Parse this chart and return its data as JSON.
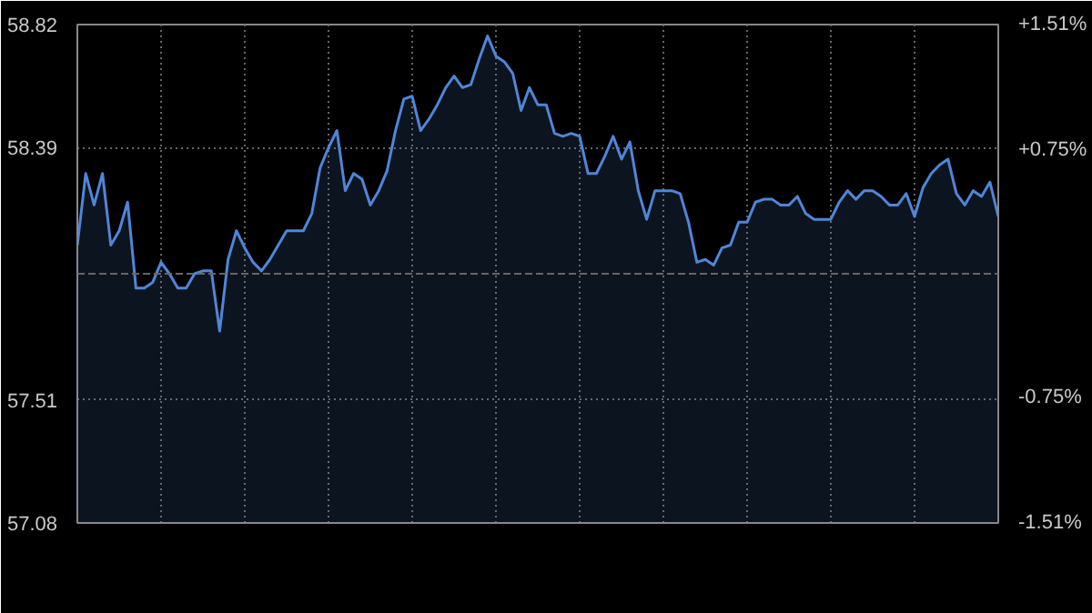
{
  "chart_data": {
    "type": "area",
    "categories": [
      null,
      null,
      null,
      null,
      null,
      null,
      null,
      null,
      null,
      null,
      null,
      null,
      null,
      null,
      null,
      null,
      null,
      null,
      null,
      null,
      null,
      null,
      null,
      null,
      null,
      null,
      null,
      null,
      null,
      null,
      null,
      null,
      null,
      null,
      null,
      null,
      null,
      null,
      null,
      null,
      null,
      null,
      null,
      null,
      null,
      null,
      null,
      null,
      null,
      null,
      null,
      null,
      null,
      null,
      null,
      null,
      null,
      null,
      null,
      null,
      null,
      null,
      null,
      null,
      null,
      null,
      null,
      null,
      null,
      null,
      null,
      null,
      null,
      null,
      null,
      null,
      null,
      null,
      null,
      null,
      null,
      null,
      null,
      null,
      null,
      null,
      null,
      null,
      null,
      null,
      null,
      null,
      null,
      null,
      null,
      null,
      null,
      null,
      null,
      null,
      null,
      null,
      null,
      null,
      null,
      null,
      null,
      null,
      null,
      null,
      null
    ],
    "ylim": [
      57.08,
      58.82
    ],
    "yticks": [
      57.08,
      57.51,
      58.39,
      58.82
    ],
    "y2lim": [
      -1.51,
      1.51
    ],
    "y2ticks": [
      {
        "value": -1.51,
        "label": "-1.51%"
      },
      {
        "value": -0.75,
        "label": "-0.75%"
      },
      {
        "value": 0.75,
        "label": "+0.75%"
      },
      {
        "value": 1.51,
        "label": "+1.51%"
      }
    ],
    "grid": true,
    "ref_lines": [
      {
        "axis": "y",
        "value": 57.95,
        "label": null,
        "color": "#666666",
        "line_style": "dashed"
      }
    ],
    "series": [
      {
        "color": "#4f86d8",
        "values": [
          58.05,
          58.3,
          58.19,
          58.3,
          58.05,
          58.1,
          58.2,
          57.9,
          57.9,
          57.92,
          57.99,
          57.95,
          57.9,
          57.9,
          57.95,
          57.96,
          57.96,
          57.75,
          58.0,
          58.1,
          58.04,
          57.99,
          57.96,
          58.0,
          58.05,
          58.1,
          58.1,
          58.1,
          58.16,
          58.32,
          58.39,
          58.45,
          58.24,
          58.3,
          58.28,
          58.19,
          58.24,
          58.31,
          58.45,
          58.56,
          58.57,
          58.45,
          58.49,
          58.54,
          58.6,
          58.64,
          58.6,
          58.61,
          58.7,
          58.78,
          58.71,
          58.69,
          58.65,
          58.52,
          58.6,
          58.54,
          58.54,
          58.44,
          58.43,
          58.44,
          58.43,
          58.3,
          58.3,
          58.36,
          58.43,
          58.35,
          58.41,
          58.24,
          58.14,
          58.24,
          58.24,
          58.24,
          58.23,
          58.13,
          57.99,
          58.0,
          57.98,
          58.04,
          58.05,
          58.13,
          58.13,
          58.2,
          58.21,
          58.21,
          58.19,
          58.19,
          58.22,
          58.16,
          58.14,
          58.14,
          58.14,
          58.2,
          58.24,
          58.21,
          58.24,
          58.24,
          58.22,
          58.19,
          58.19,
          58.23,
          58.15,
          58.25,
          58.3,
          58.33,
          58.35,
          58.23,
          58.19,
          58.24,
          58.22,
          58.27,
          58.15
        ]
      }
    ]
  }
}
